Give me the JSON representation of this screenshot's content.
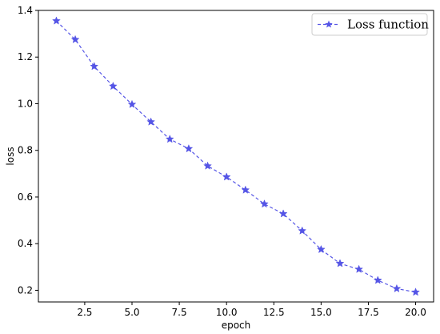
{
  "chart_data": {
    "type": "line",
    "title": "",
    "xlabel": "epoch",
    "ylabel": "loss",
    "xlim": [
      0.05,
      20.95
    ],
    "ylim": [
      0.15,
      1.4
    ],
    "x_ticks": [
      2.5,
      5.0,
      7.5,
      10.0,
      12.5,
      15.0,
      17.5,
      20.0
    ],
    "x_tick_labels": [
      "2.5",
      "5.0",
      "7.5",
      "10.0",
      "12.5",
      "15.0",
      "17.5",
      "20.0"
    ],
    "y_ticks": [
      0.2,
      0.4,
      0.6,
      0.8,
      1.0,
      1.2,
      1.4
    ],
    "y_tick_labels": [
      "0.2",
      "0.4",
      "0.6",
      "0.8",
      "1.0",
      "1.2",
      "1.4"
    ],
    "grid": false,
    "legend_position": "top-right",
    "series": [
      {
        "name": "Loss function",
        "color": "#5555e6",
        "line_style": "dashed",
        "marker": "star",
        "x": [
          1,
          2,
          3,
          4,
          5,
          6,
          7,
          8,
          9,
          10,
          11,
          12,
          13,
          14,
          15,
          16,
          17,
          18,
          19,
          20
        ],
        "y": [
          1.355,
          1.275,
          1.16,
          1.075,
          0.997,
          0.922,
          0.848,
          0.807,
          0.733,
          0.686,
          0.63,
          0.57,
          0.528,
          0.455,
          0.375,
          0.315,
          0.29,
          0.243,
          0.207,
          0.192
        ]
      }
    ]
  }
}
